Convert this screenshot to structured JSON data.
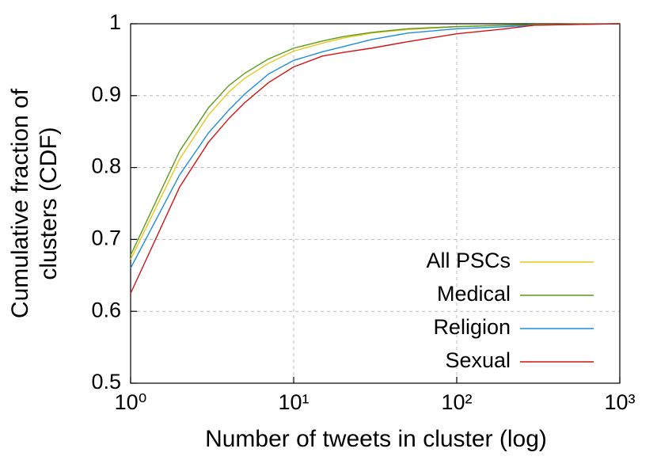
{
  "chart_data": {
    "type": "line",
    "xlabel": "Number of tweets in cluster (log)",
    "ylabel": [
      "Cumulative fraction of",
      "clusters (CDF)"
    ],
    "xscale": "log",
    "xlim": [
      1,
      1000
    ],
    "xticks": [
      {
        "value": 1,
        "label": "10⁰"
      },
      {
        "value": 10,
        "label": "10¹"
      },
      {
        "value": 100,
        "label": "10²"
      },
      {
        "value": 1000,
        "label": "10³"
      }
    ],
    "ylim": [
      0.5,
      1
    ],
    "yticks": [
      0.5,
      0.6,
      0.7,
      0.8,
      0.9,
      1
    ],
    "grid": true,
    "legend": "lower right",
    "x": [
      1,
      2,
      3,
      4,
      5,
      7,
      10,
      15,
      20,
      30,
      50,
      100,
      200,
      300,
      1000
    ],
    "series": [
      {
        "name": "All PSCs",
        "color": "#e8c61c",
        "values": [
          0.672,
          0.812,
          0.873,
          0.905,
          0.924,
          0.945,
          0.962,
          0.973,
          0.98,
          0.987,
          0.992,
          0.996,
          0.998,
          0.999,
          1
        ]
      },
      {
        "name": "Medical",
        "color": "#5c9b1f",
        "values": [
          0.678,
          0.823,
          0.883,
          0.914,
          0.931,
          0.951,
          0.966,
          0.976,
          0.982,
          0.988,
          0.993,
          0.996,
          0.998,
          0.999,
          1
        ]
      },
      {
        "name": "Religion",
        "color": "#1c8ddb",
        "values": [
          0.66,
          0.79,
          0.848,
          0.88,
          0.902,
          0.93,
          0.949,
          0.961,
          0.968,
          0.978,
          0.987,
          0.993,
          0.996,
          0.998,
          1
        ]
      },
      {
        "name": "Sexual",
        "color": "#d01414",
        "values": [
          0.625,
          0.773,
          0.835,
          0.868,
          0.89,
          0.918,
          0.94,
          0.955,
          0.96,
          0.966,
          0.975,
          0.986,
          0.993,
          0.998,
          1
        ]
      }
    ]
  }
}
